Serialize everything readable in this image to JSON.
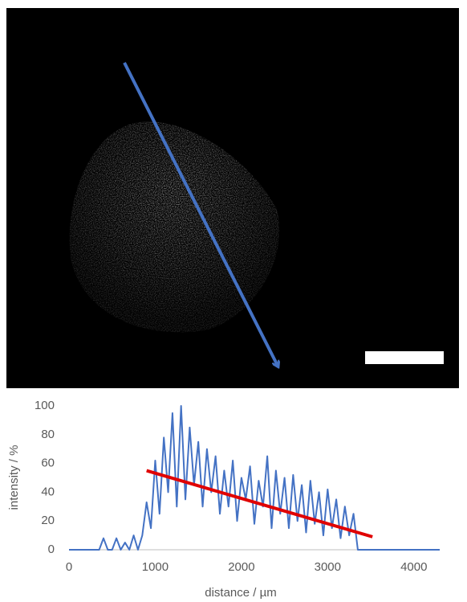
{
  "chart_data": {
    "type": "line",
    "xlabel": "distance / µm",
    "ylabel": "intensity / %",
    "xlim": [
      0,
      4300
    ],
    "ylim": [
      0,
      100
    ],
    "xticks": [
      0,
      1000,
      2000,
      3000,
      4000
    ],
    "yticks": [
      0,
      20,
      40,
      60,
      80,
      100
    ],
    "series": [
      {
        "color": "#4472c4",
        "x": [
          0,
          50,
          100,
          150,
          200,
          250,
          300,
          350,
          400,
          450,
          500,
          550,
          600,
          650,
          700,
          750,
          800,
          850,
          900,
          950,
          1000,
          1050,
          1100,
          1150,
          1200,
          1250,
          1300,
          1350,
          1400,
          1450,
          1500,
          1550,
          1600,
          1650,
          1700,
          1750,
          1800,
          1850,
          1900,
          1950,
          2000,
          2050,
          2100,
          2150,
          2200,
          2250,
          2300,
          2350,
          2400,
          2450,
          2500,
          2550,
          2600,
          2650,
          2700,
          2750,
          2800,
          2850,
          2900,
          2950,
          3000,
          3050,
          3100,
          3150,
          3200,
          3250,
          3300,
          3350,
          3400,
          3450,
          3500,
          3550,
          3600,
          3650,
          3700,
          3750,
          3800,
          3850,
          3900,
          3950,
          4000,
          4050,
          4100,
          4150,
          4200,
          4250,
          4300
        ],
        "values": [
          0,
          0,
          0,
          0,
          0,
          0,
          0,
          0,
          8,
          0,
          0,
          8,
          0,
          5,
          0,
          10,
          0,
          10,
          33,
          15,
          62,
          25,
          78,
          40,
          95,
          30,
          100,
          35,
          85,
          45,
          75,
          30,
          70,
          40,
          65,
          25,
          55,
          30,
          62,
          20,
          50,
          35,
          58,
          18,
          48,
          30,
          65,
          15,
          55,
          25,
          50,
          15,
          52,
          20,
          45,
          12,
          48,
          18,
          40,
          10,
          42,
          15,
          35,
          8,
          30,
          10,
          25,
          0,
          0,
          0,
          0,
          0,
          0,
          0,
          0,
          0,
          0,
          0,
          0,
          0,
          0,
          0,
          0,
          0,
          0,
          0,
          0
        ]
      },
      {
        "color": "#e00000",
        "x": [
          900,
          3520
        ],
        "values": [
          55,
          9
        ]
      }
    ]
  }
}
